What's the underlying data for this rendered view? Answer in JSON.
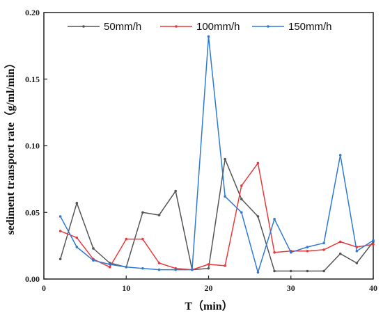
{
  "chart_data": {
    "type": "line",
    "xlabel": "T（min）",
    "ylabel": "sediment transport rate（g/ml/min）",
    "xlim": [
      0,
      40
    ],
    "ylim": [
      0,
      0.2
    ],
    "xticks": [
      "0",
      "10",
      "20",
      "30",
      "40"
    ],
    "yticks": [
      "0.00",
      "0.05",
      "0.10",
      "0.15",
      "0.20"
    ],
    "legend_position": "top",
    "grid": false,
    "series": [
      {
        "name": "50mm/h",
        "color": "#555555",
        "x": [
          2,
          4,
          6,
          8,
          10,
          12,
          14,
          16,
          18,
          20,
          22,
          24,
          26,
          28,
          30,
          32,
          34,
          36,
          38,
          40
        ],
        "y": [
          0.015,
          0.057,
          0.023,
          0.012,
          0.009,
          0.05,
          0.048,
          0.066,
          0.007,
          0.008,
          0.09,
          0.06,
          0.047,
          0.006,
          0.006,
          0.006,
          0.006,
          0.019,
          0.012,
          0.028
        ]
      },
      {
        "name": "100mm/h",
        "color": "#e8393d",
        "x": [
          2,
          4,
          6,
          8,
          10,
          12,
          14,
          16,
          18,
          20,
          22,
          24,
          26,
          28,
          30,
          32,
          34,
          36,
          38,
          40
        ],
        "y": [
          0.036,
          0.031,
          0.015,
          0.009,
          0.03,
          0.03,
          0.012,
          0.008,
          0.007,
          0.011,
          0.01,
          0.07,
          0.087,
          0.02,
          0.021,
          0.021,
          0.022,
          0.028,
          0.024,
          0.026
        ]
      },
      {
        "name": "150mm/h",
        "color": "#2f79d6",
        "x": [
          2,
          4,
          6,
          8,
          10,
          12,
          14,
          16,
          18,
          20,
          22,
          24,
          26,
          28,
          30,
          32,
          34,
          36,
          38,
          40
        ],
        "y": [
          0.047,
          0.024,
          0.014,
          0.011,
          0.009,
          0.008,
          0.007,
          0.007,
          0.007,
          0.182,
          0.062,
          0.05,
          0.005,
          0.045,
          0.02,
          0.024,
          0.027,
          0.093,
          0.021,
          0.029
        ]
      }
    ]
  }
}
